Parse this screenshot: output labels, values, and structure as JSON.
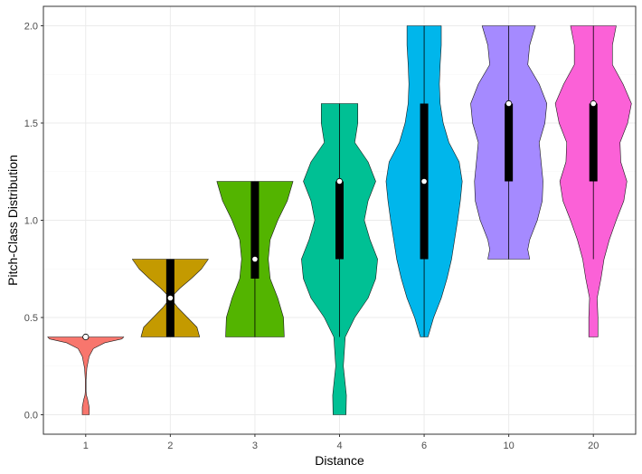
{
  "chart_data": {
    "type": "violin",
    "title": "",
    "xlabel": "Distance",
    "ylabel": "Pitch-Class Distribution",
    "ylim": [
      -0.1,
      2.1
    ],
    "y_ticks": [
      "0.0",
      "0.5",
      "1.0",
      "1.5",
      "2.0"
    ],
    "grid": true,
    "legend": "none",
    "categories": [
      "1",
      "2",
      "3",
      "4",
      "6",
      "10",
      "20"
    ],
    "series": [
      {
        "category": "1",
        "color": "#F8766D",
        "box": {
          "q1": 0.4,
          "median": 0.4,
          "q3": 0.4,
          "whisker_low": 0.4,
          "whisker_high": 0.4
        },
        "density": [
          [
            0.0,
            0.09
          ],
          [
            0.04,
            0.09
          ],
          [
            0.08,
            0.05
          ],
          [
            0.1,
            0.02
          ],
          [
            0.12,
            0.01
          ],
          [
            0.18,
            0.01
          ],
          [
            0.24,
            0.03
          ],
          [
            0.3,
            0.09
          ],
          [
            0.34,
            0.2
          ],
          [
            0.37,
            0.5
          ],
          [
            0.39,
            0.95
          ],
          [
            0.4,
            1.0
          ]
        ]
      },
      {
        "category": "2",
        "color": "#C49A00",
        "box": {
          "q1": 0.4,
          "median": 0.6,
          "q3": 0.8,
          "whisker_low": 0.4,
          "whisker_high": 0.8
        },
        "density": [
          [
            0.4,
            0.77
          ],
          [
            0.45,
            0.7
          ],
          [
            0.5,
            0.45
          ],
          [
            0.55,
            0.2
          ],
          [
            0.58,
            0.08
          ],
          [
            0.6,
            0.06
          ],
          [
            0.62,
            0.1
          ],
          [
            0.65,
            0.25
          ],
          [
            0.7,
            0.55
          ],
          [
            0.75,
            0.82
          ],
          [
            0.8,
            1.0
          ]
        ]
      },
      {
        "category": "3",
        "color": "#53B400",
        "box": {
          "q1": 0.7,
          "median": 0.8,
          "q3": 1.2,
          "whisker_low": 0.4,
          "whisker_high": 1.2
        },
        "density": [
          [
            0.4,
            0.77
          ],
          [
            0.5,
            0.75
          ],
          [
            0.6,
            0.6
          ],
          [
            0.7,
            0.4
          ],
          [
            0.8,
            0.35
          ],
          [
            0.9,
            0.4
          ],
          [
            1.0,
            0.6
          ],
          [
            1.1,
            0.85
          ],
          [
            1.2,
            1.0
          ]
        ]
      },
      {
        "category": "4",
        "color": "#00C094",
        "box": {
          "q1": 0.8,
          "median": 1.2,
          "q3": 1.2,
          "whisker_low": 0.4,
          "whisker_high": 1.6
        },
        "density": [
          [
            0.0,
            0.17
          ],
          [
            0.1,
            0.18
          ],
          [
            0.25,
            0.1
          ],
          [
            0.4,
            0.15
          ],
          [
            0.5,
            0.4
          ],
          [
            0.6,
            0.75
          ],
          [
            0.7,
            0.95
          ],
          [
            0.8,
            1.0
          ],
          [
            0.9,
            0.8
          ],
          [
            1.0,
            0.65
          ],
          [
            1.1,
            0.75
          ],
          [
            1.2,
            0.95
          ],
          [
            1.3,
            0.75
          ],
          [
            1.4,
            0.4
          ],
          [
            1.5,
            0.48
          ],
          [
            1.6,
            0.48
          ]
        ]
      },
      {
        "category": "6",
        "color": "#00B6EB",
        "box": {
          "q1": 0.8,
          "median": 1.2,
          "q3": 1.6,
          "whisker_low": 0.4,
          "whisker_high": 2.0
        },
        "density": [
          [
            0.4,
            0.1
          ],
          [
            0.5,
            0.25
          ],
          [
            0.6,
            0.45
          ],
          [
            0.7,
            0.6
          ],
          [
            0.8,
            0.72
          ],
          [
            0.9,
            0.8
          ],
          [
            1.0,
            0.88
          ],
          [
            1.1,
            0.95
          ],
          [
            1.2,
            1.0
          ],
          [
            1.3,
            0.92
          ],
          [
            1.4,
            0.65
          ],
          [
            1.5,
            0.5
          ],
          [
            1.6,
            0.42
          ],
          [
            1.7,
            0.4
          ],
          [
            1.8,
            0.42
          ],
          [
            1.9,
            0.45
          ],
          [
            2.0,
            0.45
          ]
        ]
      },
      {
        "category": "10",
        "color": "#A58AFF",
        "box": {
          "q1": 1.2,
          "median": 1.6,
          "q3": 1.6,
          "whisker_low": 0.8,
          "whisker_high": 2.0
        },
        "density": [
          [
            0.8,
            0.55
          ],
          [
            0.85,
            0.5
          ],
          [
            0.9,
            0.55
          ],
          [
            1.0,
            0.75
          ],
          [
            1.1,
            0.88
          ],
          [
            1.2,
            0.9
          ],
          [
            1.3,
            0.85
          ],
          [
            1.4,
            0.8
          ],
          [
            1.5,
            0.95
          ],
          [
            1.6,
            1.0
          ],
          [
            1.7,
            0.8
          ],
          [
            1.8,
            0.5
          ],
          [
            1.9,
            0.55
          ],
          [
            2.0,
            0.7
          ]
        ]
      },
      {
        "category": "20",
        "color": "#FB61D7",
        "box": {
          "q1": 1.2,
          "median": 1.6,
          "q3": 1.6,
          "whisker_low": 0.8,
          "whisker_high": 2.0
        },
        "density": [
          [
            0.4,
            0.12
          ],
          [
            0.5,
            0.12
          ],
          [
            0.6,
            0.1
          ],
          [
            0.7,
            0.2
          ],
          [
            0.8,
            0.28
          ],
          [
            0.9,
            0.42
          ],
          [
            1.0,
            0.6
          ],
          [
            1.1,
            0.8
          ],
          [
            1.2,
            0.88
          ],
          [
            1.3,
            0.72
          ],
          [
            1.4,
            0.7
          ],
          [
            1.5,
            0.9
          ],
          [
            1.6,
            1.0
          ],
          [
            1.7,
            0.78
          ],
          [
            1.8,
            0.5
          ],
          [
            1.9,
            0.5
          ],
          [
            2.0,
            0.6
          ]
        ]
      }
    ]
  }
}
